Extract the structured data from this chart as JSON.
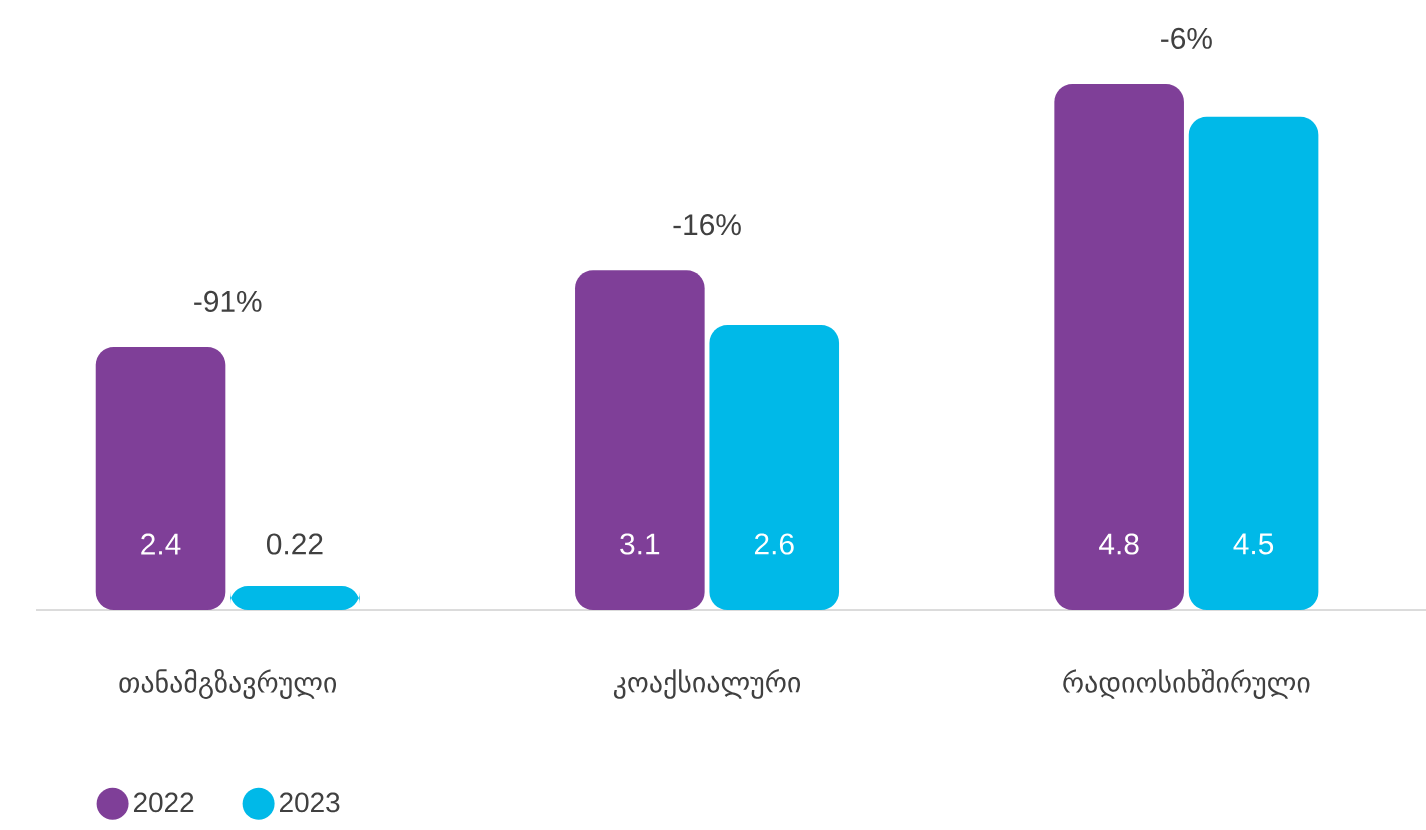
{
  "chart_data": {
    "type": "bar",
    "categories": [
      "თანამგზავრული",
      "კოაქსიალური",
      "რადიოსიხშირული"
    ],
    "series": [
      {
        "name": "2022",
        "color": "#7f3f98",
        "values": [
          2.4,
          3.1,
          4.8
        ]
      },
      {
        "name": "2023",
        "color": "#00b9e8",
        "values": [
          0.22,
          2.6,
          4.5
        ]
      }
    ],
    "data_labels": true,
    "annotations": [
      "-91%",
      "-16%",
      "-6%"
    ],
    "legend": "bottom left"
  }
}
